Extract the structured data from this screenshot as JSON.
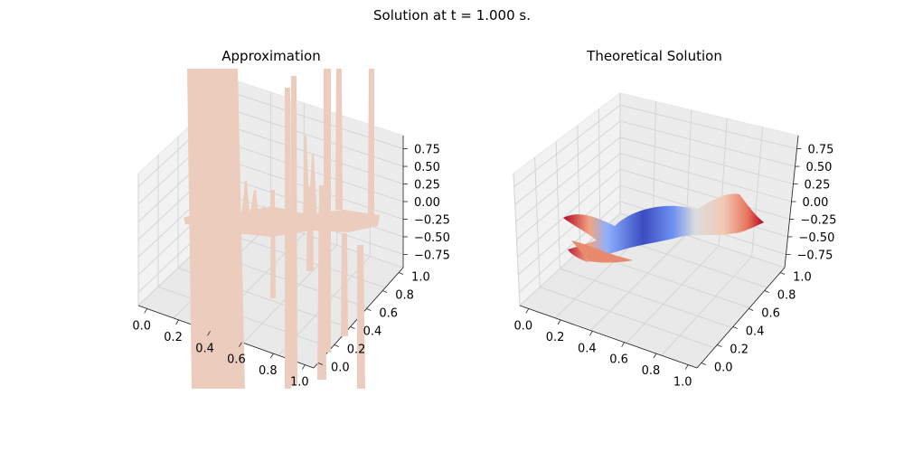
{
  "figure": {
    "suptitle": "Solution at t = 1.000 s."
  },
  "chart_data": [
    {
      "type": "surface",
      "title": "Approximation",
      "x_ticks": [
        "0.0",
        "0.2",
        "0.4",
        "0.6",
        "0.8",
        "1.0"
      ],
      "y_ticks": [
        "0.0",
        "0.2",
        "0.4",
        "0.6",
        "0.8",
        "1.0"
      ],
      "z_ticks": [
        "0.75",
        "0.50",
        "0.25",
        "0.00",
        "−0.25",
        "−0.50",
        "−0.75"
      ],
      "xlim": [
        0,
        1
      ],
      "ylim": [
        0,
        1
      ],
      "zlim": [
        -0.9,
        0.9
      ],
      "grid": true,
      "surface_color": "#ecccbd"
    },
    {
      "type": "surface",
      "title": "Theoretical Solution",
      "x_ticks": [
        "0.0",
        "0.2",
        "0.4",
        "0.6",
        "0.8",
        "1.0"
      ],
      "y_ticks": [
        "0.0",
        "0.2",
        "0.4",
        "0.6",
        "0.8",
        "1.0"
      ],
      "z_ticks": [
        "0.75",
        "0.50",
        "0.25",
        "0.00",
        "−0.25",
        "−0.50",
        "−0.75"
      ],
      "xlim": [
        0,
        1
      ],
      "ylim": [
        0,
        1
      ],
      "zlim": [
        -0.9,
        0.9
      ],
      "grid": true,
      "colormap": "coolwarm"
    }
  ]
}
